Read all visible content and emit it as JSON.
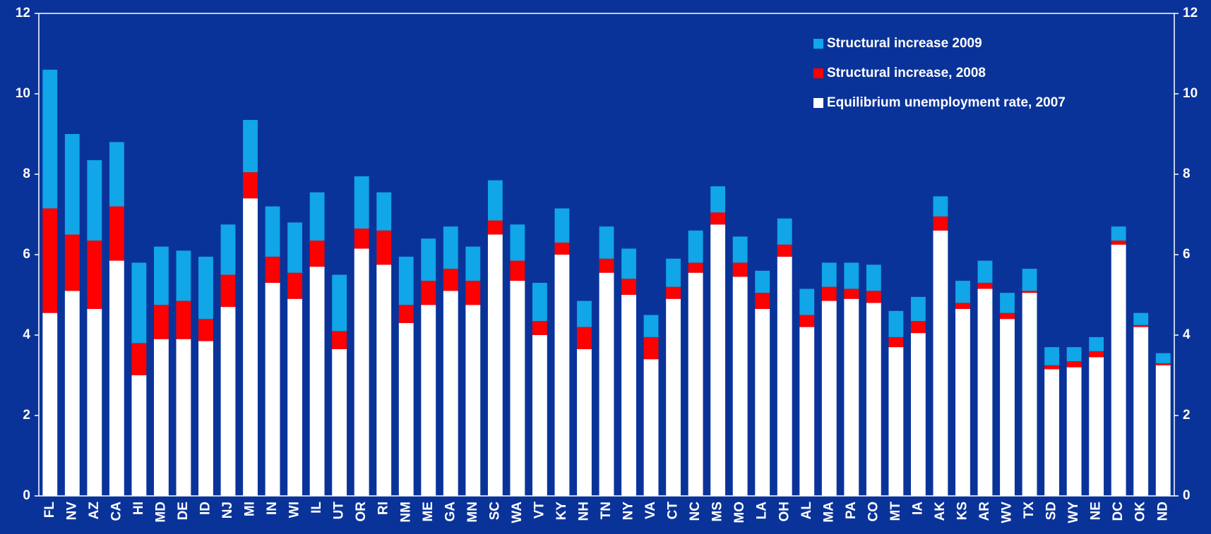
{
  "chart_data": {
    "type": "stacked_bar",
    "categories": [
      "FL",
      "NV",
      "AZ",
      "CA",
      "HI",
      "MD",
      "DE",
      "ID",
      "NJ",
      "MI",
      "IN",
      "WI",
      "IL",
      "UT",
      "OR",
      "RI",
      "NM",
      "ME",
      "GA",
      "MN",
      "SC",
      "WA",
      "VT",
      "KY",
      "NH",
      "TN",
      "NY",
      "VA",
      "CT",
      "NC",
      "MS",
      "MO",
      "LA",
      "OH",
      "AL",
      "MA",
      "PA",
      "CO",
      "MT",
      "IA",
      "AK",
      "KS",
      "AR",
      "WV",
      "TX",
      "SD",
      "WY",
      "NE",
      "DC",
      "OK",
      "ND"
    ],
    "series": [
      {
        "name": "Equilibrium unemployment rate, 2007",
        "color": "#ffffff",
        "values": [
          4.55,
          5.1,
          4.65,
          5.85,
          3.0,
          3.9,
          3.9,
          3.85,
          4.7,
          7.4,
          5.3,
          4.9,
          5.7,
          3.65,
          6.15,
          5.75,
          4.3,
          4.75,
          5.1,
          4.75,
          6.5,
          5.35,
          4.0,
          6.0,
          3.65,
          5.55,
          5.0,
          3.4,
          4.9,
          5.55,
          6.75,
          5.45,
          4.65,
          5.95,
          4.2,
          4.85,
          4.9,
          4.8,
          3.7,
          4.05,
          6.6,
          4.65,
          5.15,
          4.4,
          5.05,
          3.15,
          3.2,
          3.45,
          6.25,
          4.2,
          3.25
        ]
      },
      {
        "name": "Structural increase, 2008",
        "color": "#ff0000",
        "values": [
          2.6,
          1.4,
          1.7,
          1.35,
          0.8,
          0.85,
          0.95,
          0.55,
          0.8,
          0.65,
          0.65,
          0.65,
          0.65,
          0.45,
          0.5,
          0.85,
          0.45,
          0.6,
          0.55,
          0.6,
          0.35,
          0.5,
          0.35,
          0.3,
          0.55,
          0.35,
          0.4,
          0.55,
          0.3,
          0.25,
          0.3,
          0.35,
          0.4,
          0.3,
          0.3,
          0.35,
          0.25,
          0.3,
          0.25,
          0.3,
          0.35,
          0.15,
          0.15,
          0.15,
          0.05,
          0.1,
          0.15,
          0.15,
          0.1,
          0.05,
          0.05
        ]
      },
      {
        "name": "Structural increase 2009",
        "color": "#10a6e8",
        "values": [
          3.45,
          2.5,
          2.0,
          1.6,
          2.0,
          1.45,
          1.25,
          1.55,
          1.25,
          1.3,
          1.25,
          1.25,
          1.2,
          1.4,
          1.3,
          0.95,
          1.2,
          1.05,
          1.05,
          0.85,
          1.0,
          0.9,
          0.95,
          0.85,
          0.65,
          0.8,
          0.75,
          0.55,
          0.7,
          0.8,
          0.65,
          0.65,
          0.55,
          0.65,
          0.65,
          0.6,
          0.65,
          0.65,
          0.65,
          0.6,
          0.5,
          0.55,
          0.55,
          0.5,
          0.55,
          0.45,
          0.35,
          0.35,
          0.35,
          0.3,
          0.25
        ]
      }
    ],
    "ylim": [
      0,
      12
    ],
    "yticks": [
      0,
      2,
      4,
      6,
      8,
      10,
      12
    ],
    "y2lim": [
      0,
      12
    ],
    "y2ticks": [
      0,
      2,
      4,
      6,
      8,
      10,
      12
    ],
    "legend": "upper right"
  }
}
